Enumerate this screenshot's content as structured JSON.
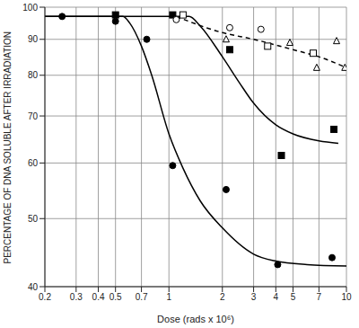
{
  "chart_data": {
    "type": "scatter",
    "x_label": "Dose (rads x 10⁶)",
    "y_label": "PERCENTAGE OF DNA SOLUBLE AFTER IRRADIATION",
    "log": true,
    "grid": true,
    "xlim": [
      0.2,
      10
    ],
    "xticks": [
      0.2,
      0.3,
      0.4,
      0.5,
      0.7,
      1,
      2,
      3,
      4,
      5,
      7,
      10
    ],
    "ylim": [
      40,
      100
    ],
    "yticks": [
      40,
      50,
      60,
      70,
      80,
      90,
      100
    ],
    "series": [
      {
        "type": "scatter",
        "marker": "filled_circle",
        "color": "#000000",
        "x": [
          0.25,
          0.5,
          0.75,
          1.05,
          2.1,
          4.1,
          8.3
        ],
        "values": [
          97,
          95.5,
          90,
          59.5,
          55,
          43,
          44
        ]
      },
      {
        "type": "scatter",
        "marker": "filled_square",
        "color": "#000000",
        "x": [
          0.5,
          1.05,
          2.2,
          4.3,
          8.5
        ],
        "values": [
          97.5,
          97.5,
          87,
          61.5,
          67
        ]
      },
      {
        "type": "scatter",
        "marker": "open_circle",
        "color": "#000000",
        "x": [
          1.1,
          2.2,
          3.3
        ],
        "values": [
          96,
          93.5,
          93
        ]
      },
      {
        "type": "scatter",
        "marker": "open_square",
        "color": "#000000",
        "x": [
          1.2,
          3.6,
          6.5
        ],
        "values": [
          97.5,
          88,
          86
        ]
      },
      {
        "type": "scatter",
        "marker": "open_triangle",
        "color": "#000000",
        "x": [
          2.1,
          4.8,
          6.8,
          8.8,
          9.8
        ],
        "values": [
          90,
          89,
          82,
          89.5,
          82
        ]
      },
      {
        "type": "line",
        "line_style": "solid",
        "color": "#000000",
        "x": [
          0.2,
          0.55,
          0.6,
          0.7,
          0.8,
          1,
          1.2,
          1.5,
          2,
          3,
          4,
          6,
          10
        ],
        "values": [
          97,
          97,
          95,
          88,
          80,
          66,
          59,
          53,
          48.5,
          44.5,
          43.5,
          43,
          42.8
        ]
      },
      {
        "type": "line",
        "line_style": "solid",
        "color": "#000000",
        "x": [
          0.2,
          1.3,
          1.5,
          2,
          2.5,
          3,
          4,
          5,
          7,
          9
        ],
        "values": [
          97,
          97,
          94,
          85,
          78,
          73,
          68,
          66,
          64.5,
          64
        ]
      },
      {
        "type": "line",
        "line_style": "dashed",
        "color": "#000000",
        "x": [
          1.1,
          2,
          3,
          5,
          7,
          10
        ],
        "values": [
          97,
          92,
          90,
          87,
          85,
          82
        ]
      }
    ]
  }
}
